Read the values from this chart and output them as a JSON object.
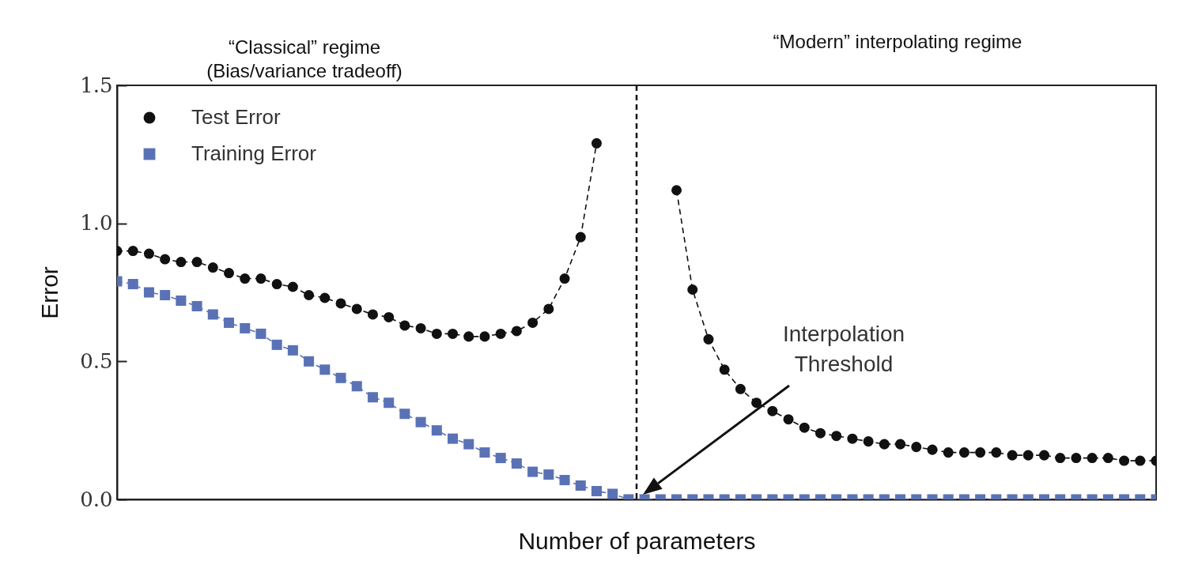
{
  "chart_data": {
    "type": "line",
    "xlabel": "Number of parameters",
    "ylabel": "Error",
    "categories": [
      null,
      null,
      null,
      null,
      null,
      null,
      null,
      null,
      null,
      null,
      null,
      null,
      null,
      null,
      null,
      null,
      null,
      null,
      null,
      null,
      null,
      null,
      null,
      null,
      null,
      null,
      null,
      null,
      null,
      null,
      null,
      null,
      null,
      null,
      null,
      null,
      null,
      null,
      null,
      null,
      null,
      null,
      null,
      null,
      null,
      null,
      null,
      null,
      null,
      null,
      null,
      null,
      null,
      null,
      null,
      null,
      null,
      null,
      null,
      null,
      null,
      null,
      null,
      null,
      null,
      null
    ],
    "series": [
      {
        "name": "Test Error",
        "color": "#111111",
        "marker": "circle",
        "values": [
          0.9,
          0.9,
          0.89,
          0.87,
          0.86,
          0.86,
          0.84,
          0.82,
          0.8,
          0.8,
          0.78,
          0.77,
          0.74,
          0.73,
          0.71,
          0.69,
          0.67,
          0.66,
          0.63,
          0.62,
          0.6,
          0.6,
          0.59,
          0.59,
          0.6,
          0.61,
          0.64,
          0.69,
          0.8,
          0.95,
          1.29,
          null,
          null,
          null,
          null,
          1.12,
          0.76,
          0.58,
          0.47,
          0.4,
          0.35,
          0.32,
          0.29,
          0.26,
          0.24,
          0.23,
          0.22,
          0.21,
          0.2,
          0.2,
          0.19,
          0.18,
          0.17,
          0.17,
          0.17,
          0.17,
          0.16,
          0.16,
          0.16,
          0.15,
          0.15,
          0.15,
          0.15,
          0.14,
          0.14,
          0.14
        ]
      },
      {
        "name": "Training Error",
        "color": "#5a72b5",
        "marker": "square",
        "values": [
          0.79,
          0.78,
          0.75,
          0.74,
          0.72,
          0.7,
          0.67,
          0.64,
          0.62,
          0.6,
          0.56,
          0.54,
          0.5,
          0.47,
          0.44,
          0.41,
          0.37,
          0.35,
          0.31,
          0.28,
          0.25,
          0.22,
          0.2,
          0.17,
          0.15,
          0.13,
          0.1,
          0.09,
          0.07,
          0.05,
          0.03,
          0.02,
          0,
          0,
          0,
          0,
          0,
          0,
          0,
          0,
          0,
          0,
          0,
          0,
          0,
          0,
          0,
          0,
          0,
          0,
          0,
          0,
          0,
          0,
          0,
          0,
          0,
          0,
          0,
          0,
          0,
          0,
          0,
          0,
          0,
          0
        ]
      }
    ],
    "ylim": [
      0,
      1.5
    ],
    "yticks": [
      {
        "value": 0,
        "label": "0.0"
      },
      {
        "value": 0.5,
        "label": "0.5"
      },
      {
        "value": 1,
        "label": "1.0"
      },
      {
        "value": 1.5,
        "label": "1.5"
      }
    ],
    "legend": "top left",
    "line_style": "dashed",
    "annotations": [
      "“Classical” regime\n(Bias/variance tradeoff)",
      "“Modern” interpolating regime",
      "Interpolation\nThreshold"
    ]
  }
}
